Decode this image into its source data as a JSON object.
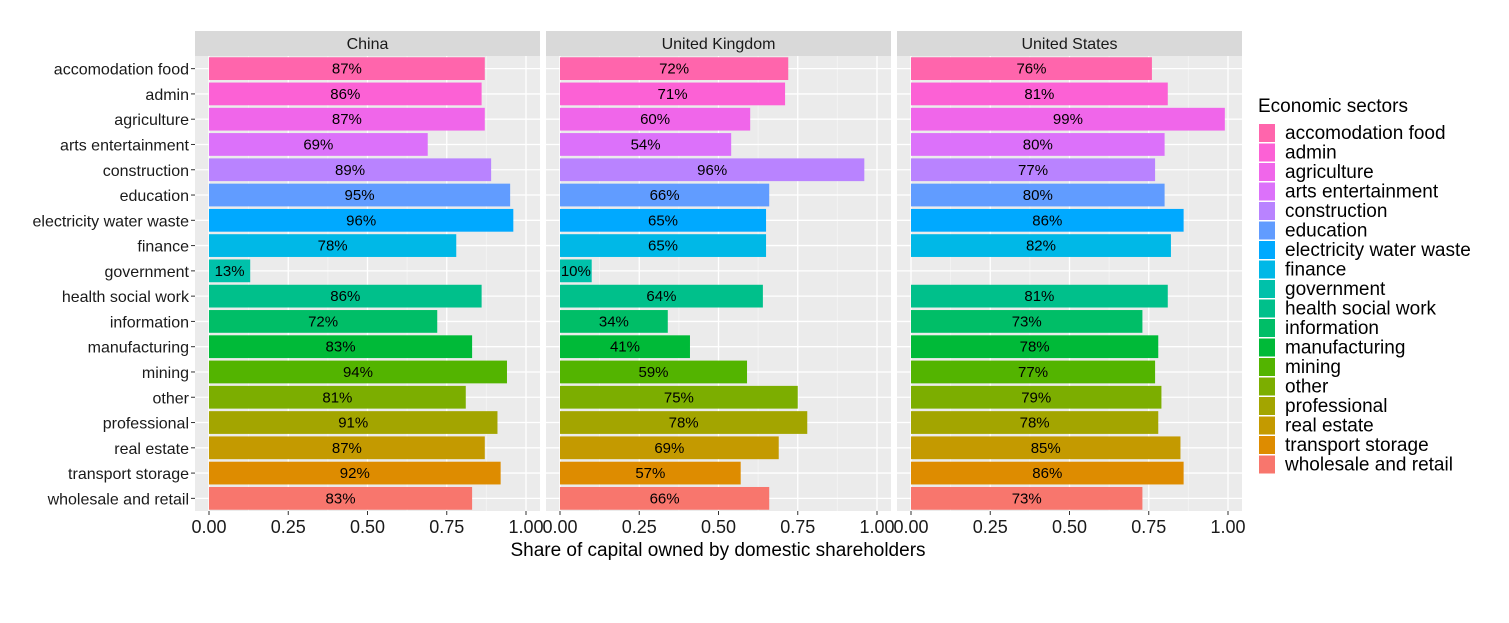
{
  "chart_data": {
    "type": "bar",
    "orientation": "horizontal",
    "xlabel": "Share of capital owned by domestic shareholders",
    "ylabel": "",
    "xlim": [
      0,
      1
    ],
    "x_ticks": [
      "0.00",
      "0.25",
      "0.50",
      "0.75",
      "1.00"
    ],
    "x_tick_values": [
      0,
      0.25,
      0.5,
      0.75,
      1
    ],
    "legend": {
      "title": "Economic sectors",
      "position": "right"
    },
    "categories": [
      "accomodation food",
      "admin",
      "agriculture",
      "arts entertainment",
      "construction",
      "education",
      "electricity water waste",
      "finance",
      "government",
      "health social work",
      "information",
      "manufacturing",
      "mining",
      "other",
      "professional",
      "real estate",
      "transport storage",
      "wholesale and retail"
    ],
    "colors": [
      "#FF65AC",
      "#FC61D5",
      "#F066EA",
      "#DC71FA",
      "#B983FF",
      "#619CFF",
      "#00A9FF",
      "#00B8E7",
      "#00C1AA",
      "#00C08B",
      "#00BE67",
      "#00BA38",
      "#53B400",
      "#7CAE00",
      "#A3A500",
      "#C49A00",
      "#DE8C00",
      "#F8766D"
    ],
    "panels": [
      {
        "name": "China",
        "values": [
          0.87,
          0.86,
          0.87,
          0.69,
          0.89,
          0.95,
          0.96,
          0.78,
          0.13,
          0.86,
          0.72,
          0.83,
          0.94,
          0.81,
          0.91,
          0.87,
          0.92,
          0.83
        ],
        "labels": [
          "87%",
          "86%",
          "87%",
          "69%",
          "89%",
          "95%",
          "96%",
          "78%",
          "13%",
          "86%",
          "72%",
          "83%",
          "94%",
          "81%",
          "91%",
          "87%",
          "92%",
          "83%"
        ]
      },
      {
        "name": "United Kingdom",
        "values": [
          0.72,
          0.71,
          0.6,
          0.54,
          0.96,
          0.66,
          0.65,
          0.65,
          0.1,
          0.64,
          0.34,
          0.41,
          0.59,
          0.75,
          0.78,
          0.69,
          0.57,
          0.66
        ],
        "labels": [
          "72%",
          "71%",
          "60%",
          "54%",
          "96%",
          "66%",
          "65%",
          "65%",
          "10%",
          "64%",
          "34%",
          "41%",
          "59%",
          "75%",
          "78%",
          "69%",
          "57%",
          "66%"
        ]
      },
      {
        "name": "United States",
        "values": [
          0.76,
          0.81,
          0.99,
          0.8,
          0.77,
          0.8,
          0.86,
          0.82,
          null,
          0.81,
          0.73,
          0.78,
          0.77,
          0.79,
          0.78,
          0.85,
          0.86,
          0.73
        ],
        "labels": [
          "76%",
          "81%",
          "99%",
          "80%",
          "77%",
          "80%",
          "86%",
          "82%",
          "",
          "81%",
          "73%",
          "78%",
          "77%",
          "79%",
          "78%",
          "85%",
          "86%",
          "73%"
        ]
      }
    ]
  }
}
